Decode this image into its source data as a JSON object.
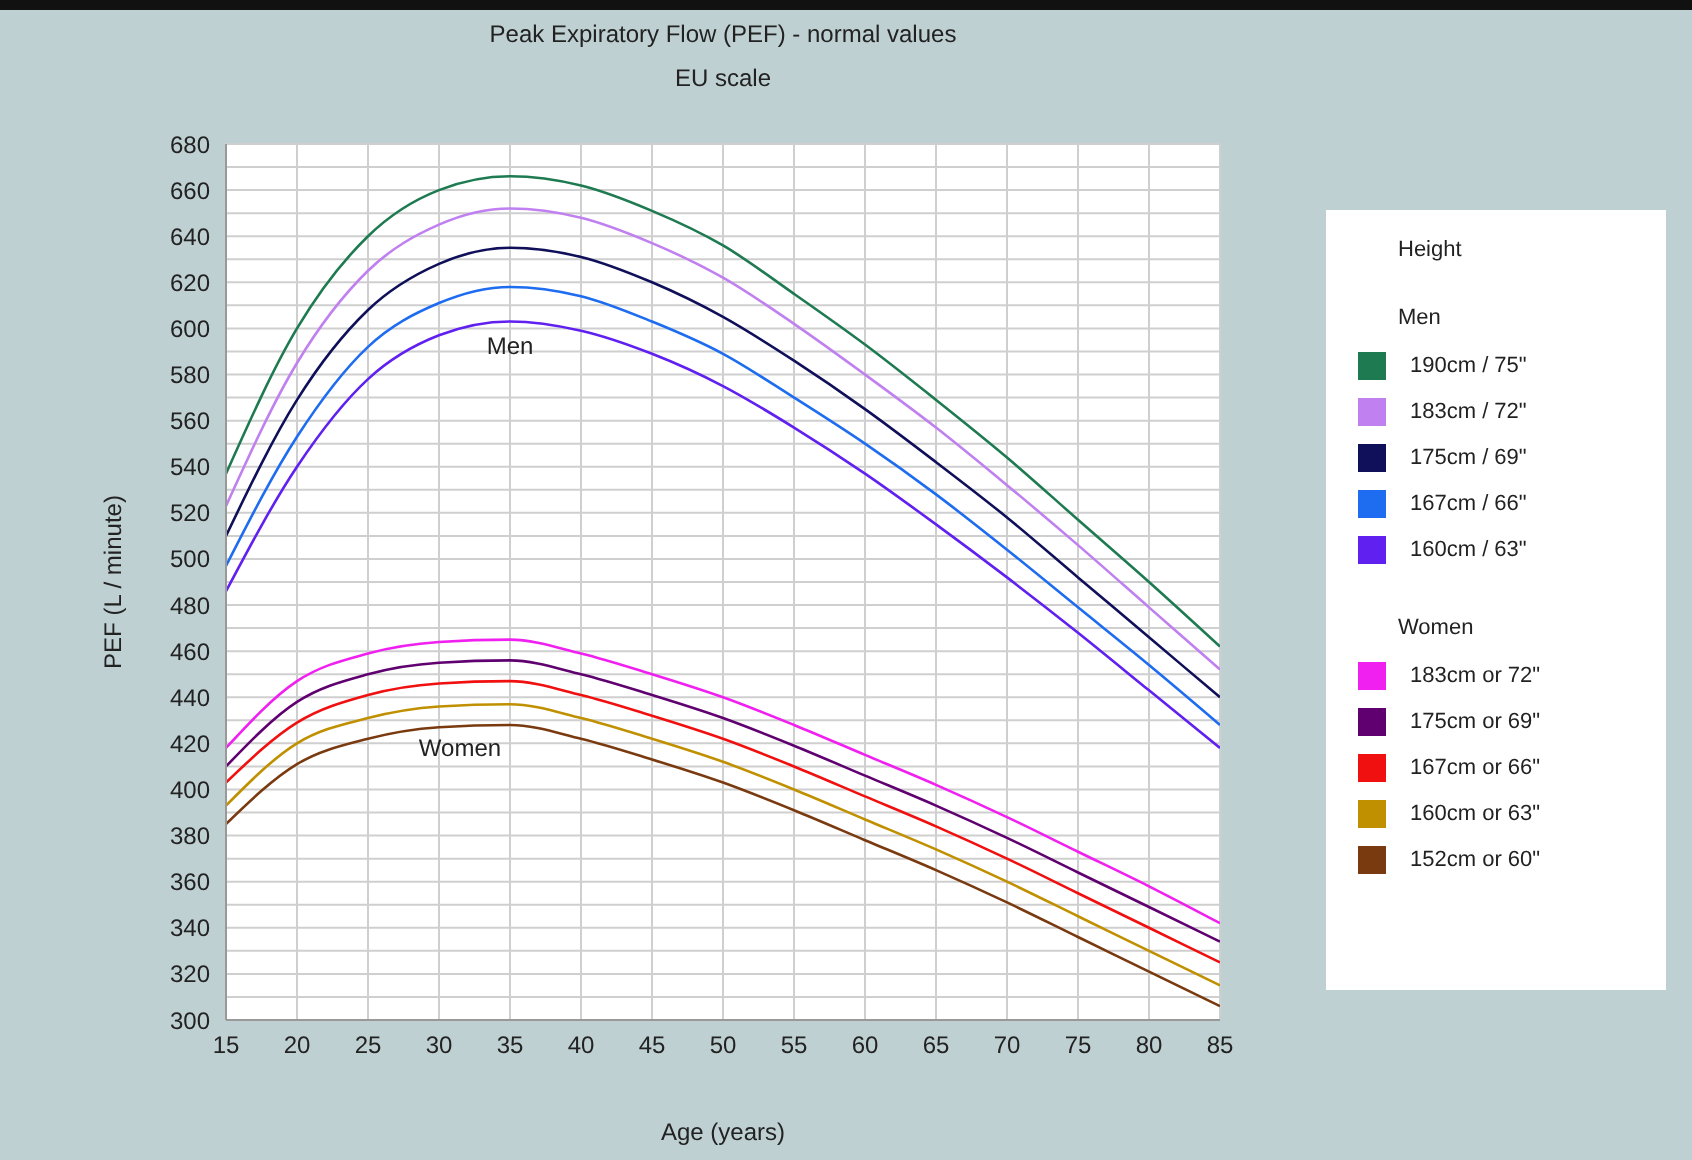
{
  "chart_data": {
    "type": "line",
    "title": "Peak Expiratory Flow (PEF) - normal values",
    "subtitle": "EU scale",
    "xlabel": "Age (years)",
    "ylabel": "PEF (L / minute)",
    "legend_title": "Height",
    "x": [
      15,
      20,
      25,
      30,
      35,
      40,
      45,
      50,
      55,
      60,
      65,
      70,
      75,
      80,
      85
    ],
    "series": [
      {
        "name": "190cm / 75\"",
        "color": "#1e7a50",
        "values": [
          537,
          600,
          640,
          660,
          666,
          662,
          651,
          636,
          615,
          593,
          569,
          544,
          517,
          490,
          462
        ]
      },
      {
        "name": "183cm / 72\"",
        "color": "#c080f0",
        "values": [
          523,
          585,
          625,
          645,
          652,
          648,
          637,
          622,
          602,
          580,
          557,
          532,
          506,
          479,
          452
        ]
      },
      {
        "name": "175cm / 69\"",
        "color": "#10105a",
        "values": [
          510,
          569,
          608,
          628,
          635,
          631,
          620,
          605,
          586,
          565,
          542,
          518,
          492,
          466,
          440
        ]
      },
      {
        "name": "167cm / 66\"",
        "color": "#1e6cf0",
        "values": [
          497,
          553,
          592,
          611,
          618,
          614,
          603,
          589,
          570,
          550,
          528,
          504,
          479,
          454,
          428
        ]
      },
      {
        "name": "160cm / 63\"",
        "color": "#6020f0",
        "values": [
          486,
          540,
          578,
          597,
          603,
          599,
          589,
          575,
          557,
          537,
          515,
          492,
          468,
          443,
          418
        ]
      },
      {
        "name": "183cm or 72\"",
        "color": "#f020f0",
        "values": [
          418,
          447,
          459,
          464,
          465,
          459,
          450,
          440,
          428,
          415,
          402,
          388,
          373,
          358,
          342
        ]
      },
      {
        "name": "175cm or 69\"",
        "color": "#600070",
        "values": [
          410,
          438,
          450,
          455,
          456,
          450,
          441,
          431,
          419,
          406,
          393,
          379,
          364,
          349,
          334
        ]
      },
      {
        "name": "167cm or 66\"",
        "color": "#f01010",
        "values": [
          403,
          429,
          441,
          446,
          447,
          441,
          432,
          422,
          410,
          397,
          384,
          370,
          355,
          340,
          325
        ]
      },
      {
        "name": "160cm or 63\"",
        "color": "#c09000",
        "values": [
          393,
          420,
          431,
          436,
          437,
          431,
          422,
          412,
          400,
          387,
          374,
          360,
          345,
          330,
          315
        ]
      },
      {
        "name": "152cm or 60\"",
        "color": "#7a3a10",
        "values": [
          385,
          411,
          422,
          427,
          428,
          422,
          413,
          403,
          391,
          378,
          365,
          351,
          336,
          321,
          306
        ]
      }
    ],
    "annotations": [
      "Men",
      "Women"
    ],
    "xlim": [
      15,
      85
    ],
    "xticks": [
      15,
      20,
      25,
      30,
      35,
      40,
      45,
      50,
      55,
      60,
      65,
      70,
      75,
      80,
      85
    ],
    "ylim": [
      300,
      680
    ],
    "yticks": [
      300,
      {
        "value": 310,
        "label": null
      },
      320,
      {
        "value": 330,
        "label": null
      },
      340,
      {
        "value": 350,
        "label": null
      },
      360,
      {
        "value": 370,
        "label": null
      },
      380,
      {
        "value": 390,
        "label": null
      },
      400,
      {
        "value": 410,
        "label": null
      },
      420,
      {
        "value": 430,
        "label": null
      },
      440,
      {
        "value": 450,
        "label": null
      },
      460,
      {
        "value": 470,
        "label": null
      },
      480,
      {
        "value": 490,
        "label": null
      },
      500,
      {
        "value": 510,
        "label": null
      },
      520,
      {
        "value": 530,
        "label": null
      },
      540,
      {
        "value": 550,
        "label": null
      },
      560,
      {
        "value": 570,
        "label": null
      },
      580,
      {
        "value": 590,
        "label": null
      },
      600,
      {
        "value": 610,
        "label": null
      },
      620,
      {
        "value": 630,
        "label": null
      },
      640,
      {
        "value": 650,
        "label": null
      },
      660,
      {
        "value": 670,
        "label": null
      },
      680
    ],
    "grid": true,
    "legend": "right",
    "marker": "none",
    "line_style": "solid"
  }
}
